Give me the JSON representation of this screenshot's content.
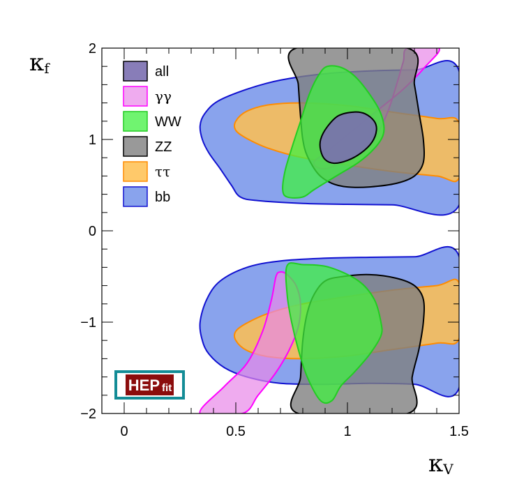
{
  "chart_data": {
    "type": "area",
    "title": "",
    "xlabel": "κ",
    "xlabel_sub": "V",
    "ylabel": "κ",
    "ylabel_sub": "f",
    "xlim": [
      -0.1,
      1.5
    ],
    "ylim": [
      -2,
      2
    ],
    "x_ticks": [
      {
        "v": 0,
        "label": "0"
      },
      {
        "v": 0.5,
        "label": "0.5"
      },
      {
        "v": 1,
        "label": "1"
      },
      {
        "v": 1.5,
        "label": "1.5"
      }
    ],
    "y_ticks": [
      {
        "v": -2,
        "label": "−2"
      },
      {
        "v": -1,
        "label": "−1"
      },
      {
        "v": 0,
        "label": "0"
      },
      {
        "v": 1,
        "label": "1"
      },
      {
        "v": 2,
        "label": "2"
      }
    ],
    "grid": false,
    "legend_position": "top-left",
    "series": [
      {
        "name": "bb",
        "fill": "#6b8ce8",
        "stroke": "#1010d0",
        "opacity": 0.8,
        "regions": [
          [
            [
              1.5,
              1.75
            ],
            [
              1.3,
              1.76
            ],
            [
              1.1,
              1.75
            ],
            [
              0.9,
              1.72
            ],
            [
              0.7,
              1.65
            ],
            [
              0.55,
              1.55
            ],
            [
              0.42,
              1.42
            ],
            [
              0.36,
              1.28
            ],
            [
              0.34,
              1.15
            ],
            [
              0.35,
              1.0
            ],
            [
              0.38,
              0.85
            ],
            [
              0.43,
              0.68
            ],
            [
              0.48,
              0.5
            ],
            [
              0.52,
              0.37
            ],
            [
              0.6,
              0.33
            ],
            [
              0.8,
              0.3
            ],
            [
              1.0,
              0.29
            ],
            [
              1.2,
              0.285
            ],
            [
              1.5,
              0.28
            ]
          ],
          [
            [
              1.5,
              -0.28
            ],
            [
              1.3,
              -0.285
            ],
            [
              1.1,
              -0.29
            ],
            [
              0.9,
              -0.3
            ],
            [
              0.7,
              -0.33
            ],
            [
              0.55,
              -0.4
            ],
            [
              0.43,
              -0.55
            ],
            [
              0.37,
              -0.75
            ],
            [
              0.34,
              -1.0
            ],
            [
              0.35,
              -1.2
            ],
            [
              0.38,
              -1.35
            ],
            [
              0.45,
              -1.5
            ],
            [
              0.55,
              -1.6
            ],
            [
              0.7,
              -1.67
            ],
            [
              0.9,
              -1.68
            ],
            [
              1.1,
              -1.67
            ],
            [
              1.3,
              -1.68
            ],
            [
              1.5,
              -1.72
            ]
          ]
        ]
      },
      {
        "name": "ττ",
        "fill": "#ffc050",
        "stroke": "#ff8c00",
        "opacity": 0.85,
        "regions": [
          [
            [
              1.5,
              1.18
            ],
            [
              1.4,
              1.23
            ],
            [
              1.2,
              1.3
            ],
            [
              1.0,
              1.37
            ],
            [
              0.8,
              1.4
            ],
            [
              0.65,
              1.38
            ],
            [
              0.55,
              1.31
            ],
            [
              0.5,
              1.2
            ],
            [
              0.5,
              1.1
            ],
            [
              0.55,
              1.01
            ],
            [
              0.65,
              0.9
            ],
            [
              0.8,
              0.8
            ],
            [
              1.0,
              0.72
            ],
            [
              1.2,
              0.65
            ],
            [
              1.4,
              0.6
            ],
            [
              1.5,
              0.58
            ]
          ],
          [
            [
              1.5,
              -0.57
            ],
            [
              1.4,
              -0.6
            ],
            [
              1.2,
              -0.65
            ],
            [
              1.0,
              -0.72
            ],
            [
              0.8,
              -0.8
            ],
            [
              0.65,
              -0.9
            ],
            [
              0.55,
              -1.01
            ],
            [
              0.5,
              -1.1
            ],
            [
              0.5,
              -1.2
            ],
            [
              0.55,
              -1.31
            ],
            [
              0.65,
              -1.38
            ],
            [
              0.8,
              -1.4
            ],
            [
              1.0,
              -1.37
            ],
            [
              1.2,
              -1.3
            ],
            [
              1.4,
              -1.23
            ],
            [
              1.5,
              -1.18
            ]
          ]
        ]
      },
      {
        "name": "γγ",
        "fill": "#e888e8",
        "stroke": "#ff00ff",
        "opacity": 0.7,
        "regions": [
          [
            [
              1.27,
              2.0
            ],
            [
              1.41,
              2.0
            ],
            [
              1.35,
              1.8
            ],
            [
              1.25,
              1.55
            ],
            [
              1.1,
              1.25
            ],
            [
              1.0,
              1.05
            ],
            [
              0.9,
              0.85
            ],
            [
              0.86,
              0.78
            ],
            [
              0.85,
              0.74
            ],
            [
              0.86,
              0.7
            ],
            [
              0.9,
              0.68
            ],
            [
              0.95,
              0.72
            ],
            [
              1.05,
              0.85
            ],
            [
              1.12,
              1.0
            ],
            [
              1.18,
              1.3
            ],
            [
              1.22,
              1.6
            ],
            [
              1.25,
              1.85
            ]
          ],
          [
            [
              0.34,
              -2.0
            ],
            [
              0.45,
              -1.7
            ],
            [
              0.55,
              -1.45
            ],
            [
              0.62,
              -1.1
            ],
            [
              0.66,
              -0.75
            ],
            [
              0.68,
              -0.5
            ],
            [
              0.7,
              -0.45
            ],
            [
              0.73,
              -0.48
            ],
            [
              0.77,
              -0.6
            ],
            [
              0.79,
              -0.8
            ],
            [
              0.78,
              -1.05
            ],
            [
              0.74,
              -1.3
            ],
            [
              0.68,
              -1.55
            ],
            [
              0.6,
              -1.8
            ],
            [
              0.53,
              -2.0
            ]
          ]
        ]
      },
      {
        "name": "ZZ",
        "fill": "#808080",
        "stroke": "#000000",
        "opacity": 0.8,
        "regions": [
          [
            [
              0.77,
              2.0
            ],
            [
              1.27,
              2.0
            ],
            [
              1.3,
              1.6
            ],
            [
              1.32,
              1.3
            ],
            [
              1.34,
              1.0
            ],
            [
              1.34,
              0.75
            ],
            [
              1.3,
              0.6
            ],
            [
              1.22,
              0.52
            ],
            [
              1.1,
              0.48
            ],
            [
              1.0,
              0.48
            ],
            [
              0.93,
              0.52
            ],
            [
              0.87,
              0.62
            ],
            [
              0.82,
              0.82
            ],
            [
              0.8,
              1.0
            ],
            [
              0.79,
              1.25
            ],
            [
              0.78,
              1.6
            ]
          ],
          [
            [
              0.78,
              -2.0
            ],
            [
              0.79,
              -1.6
            ],
            [
              0.8,
              -1.2
            ],
            [
              0.82,
              -0.9
            ],
            [
              0.85,
              -0.7
            ],
            [
              0.9,
              -0.55
            ],
            [
              0.98,
              -0.5
            ],
            [
              1.1,
              -0.48
            ],
            [
              1.22,
              -0.52
            ],
            [
              1.3,
              -0.6
            ],
            [
              1.34,
              -0.75
            ],
            [
              1.34,
              -1.0
            ],
            [
              1.32,
              -1.3
            ],
            [
              1.29,
              -1.6
            ],
            [
              1.27,
              -2.0
            ]
          ]
        ]
      },
      {
        "name": "WW",
        "fill": "#40f040",
        "stroke": "#22cc22",
        "opacity": 0.75,
        "regions": [
          [
            [
              0.91,
              1.8
            ],
            [
              0.98,
              1.78
            ],
            [
              1.05,
              1.65
            ],
            [
              1.13,
              1.38
            ],
            [
              1.16,
              1.2
            ],
            [
              1.16,
              1.05
            ],
            [
              1.12,
              0.9
            ],
            [
              1.05,
              0.75
            ],
            [
              0.95,
              0.6
            ],
            [
              0.85,
              0.45
            ],
            [
              0.8,
              0.37
            ],
            [
              0.73,
              0.37
            ],
            [
              0.71,
              0.45
            ],
            [
              0.72,
              0.65
            ],
            [
              0.75,
              0.9
            ],
            [
              0.79,
              1.2
            ],
            [
              0.83,
              1.5
            ],
            [
              0.87,
              1.7
            ]
          ],
          [
            [
              0.73,
              -0.38
            ],
            [
              0.8,
              -0.37
            ],
            [
              0.92,
              -0.4
            ],
            [
              1.05,
              -0.55
            ],
            [
              1.12,
              -0.75
            ],
            [
              1.15,
              -1.0
            ],
            [
              1.15,
              -1.15
            ],
            [
              1.1,
              -1.35
            ],
            [
              1.03,
              -1.55
            ],
            [
              0.97,
              -1.7
            ],
            [
              0.93,
              -1.86
            ],
            [
              0.88,
              -1.86
            ],
            [
              0.82,
              -1.6
            ],
            [
              0.78,
              -1.3
            ],
            [
              0.75,
              -1.0
            ],
            [
              0.73,
              -0.7
            ]
          ]
        ]
      },
      {
        "name": "all",
        "fill": "#7b6fb0",
        "stroke": "#000000",
        "opacity": 0.9,
        "regions": [
          [
            [
              1.03,
              1.3
            ],
            [
              1.08,
              1.28
            ],
            [
              1.12,
              1.2
            ],
            [
              1.13,
              1.1
            ],
            [
              1.11,
              0.97
            ],
            [
              1.06,
              0.85
            ],
            [
              1.0,
              0.77
            ],
            [
              0.94,
              0.74
            ],
            [
              0.9,
              0.78
            ],
            [
              0.88,
              0.88
            ],
            [
              0.88,
              1.0
            ],
            [
              0.91,
              1.14
            ],
            [
              0.96,
              1.26
            ]
          ]
        ]
      }
    ],
    "legend_order": [
      "all",
      "γγ",
      "WW",
      "ZZ",
      "ττ",
      "bb"
    ]
  },
  "logo": {
    "main": "HEP",
    "sub": "fit",
    "colors": {
      "border": "#138c96",
      "box": "#8b0c0c",
      "text": "#ffffff"
    }
  }
}
